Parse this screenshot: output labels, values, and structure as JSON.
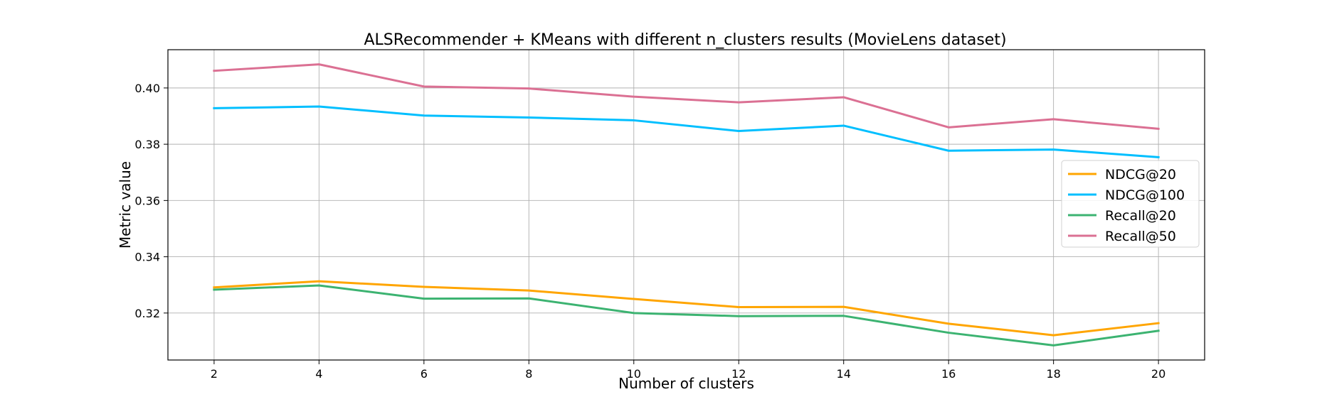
{
  "chart_data": {
    "type": "line",
    "title": "ALSRecommender + KMeans with different n_clusters results (MovieLens dataset)",
    "xlabel": "Number of clusters",
    "ylabel": "Metric value",
    "x": [
      2,
      4,
      6,
      8,
      10,
      12,
      14,
      16,
      18,
      20
    ],
    "xticks": [
      "2",
      "4",
      "6",
      "8",
      "10",
      "12",
      "14",
      "16",
      "18",
      "20"
    ],
    "yticks": [
      "0.32",
      "0.34",
      "0.36",
      "0.38",
      "0.40"
    ],
    "xlim": [
      1.12,
      20.88
    ],
    "ylim": [
      0.3033,
      0.4136
    ],
    "grid": true,
    "legend_position": "right",
    "series": [
      {
        "name": "NDCG@20",
        "color": "#ffa500",
        "values": [
          0.3291,
          0.3313,
          0.3293,
          0.328,
          0.325,
          0.3221,
          0.3222,
          0.3162,
          0.3121,
          0.3164
        ]
      },
      {
        "name": "NDCG@100",
        "color": "#00bfff",
        "values": [
          0.3928,
          0.3934,
          0.3902,
          0.3895,
          0.3885,
          0.3847,
          0.3866,
          0.3777,
          0.3781,
          0.3754
        ]
      },
      {
        "name": "Recall@20",
        "color": "#3cb371",
        "values": [
          0.3283,
          0.3298,
          0.3251,
          0.3252,
          0.32,
          0.3189,
          0.319,
          0.313,
          0.3085,
          0.3137
        ]
      },
      {
        "name": "Recall@50",
        "color": "#db7093",
        "values": [
          0.4061,
          0.4084,
          0.4005,
          0.3998,
          0.3969,
          0.3949,
          0.3967,
          0.386,
          0.3889,
          0.3855
        ]
      }
    ]
  }
}
